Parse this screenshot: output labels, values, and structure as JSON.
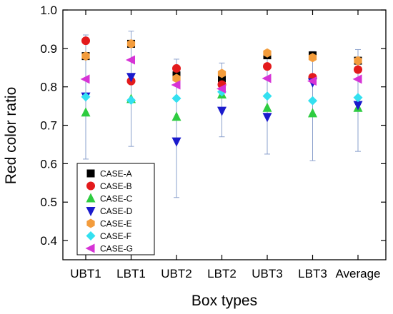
{
  "chart_data": {
    "type": "scatter",
    "title": "",
    "xlabel": "Box types",
    "ylabel": "Red color ratio",
    "categories": [
      "UBT1",
      "LBT1",
      "UBT2",
      "LBT2",
      "UBT3",
      "LBT3",
      "Average"
    ],
    "ylim": [
      0.35,
      1.0
    ],
    "yticks": [
      "0.4",
      "0.5",
      "0.6",
      "0.7",
      "0.8",
      "0.9",
      "1.0"
    ],
    "grid": false,
    "legend_position": "bottom-left",
    "series": [
      {
        "name": "CASE-A",
        "marker": "square",
        "color": "#000000",
        "values": [
          0.88,
          0.912,
          0.83,
          0.822,
          0.882,
          0.882,
          0.868
        ]
      },
      {
        "name": "CASE-B",
        "marker": "circle",
        "color": "#e31a1c",
        "values": [
          0.92,
          0.815,
          0.848,
          0.806,
          0.853,
          0.825,
          0.845
        ]
      },
      {
        "name": "CASE-C",
        "marker": "triangle-up",
        "color": "#2ecc40",
        "values": [
          0.733,
          0.768,
          0.722,
          0.78,
          0.745,
          0.731,
          0.745
        ]
      },
      {
        "name": "CASE-D",
        "marker": "triangle-down",
        "color": "#1a1acc",
        "values": [
          0.775,
          0.826,
          0.658,
          0.738,
          0.722,
          0.812,
          0.753
        ]
      },
      {
        "name": "CASE-E",
        "marker": "hexagon",
        "color": "#f39c3c",
        "values": [
          0.88,
          0.912,
          0.822,
          0.835,
          0.888,
          0.876,
          0.868
        ]
      },
      {
        "name": "CASE-F",
        "marker": "diamond",
        "color": "#33e0f0",
        "values": [
          0.774,
          0.765,
          0.77,
          0.787,
          0.776,
          0.764,
          0.772
        ]
      },
      {
        "name": "CASE-G",
        "marker": "triangle-left",
        "color": "#d633d6",
        "values": [
          0.82,
          0.87,
          0.805,
          0.795,
          0.822,
          0.815,
          0.82
        ]
      }
    ],
    "error_bars": [
      {
        "category": "UBT1",
        "upper": 0.935,
        "lower": 0.612,
        "color": "#8aa0cc"
      },
      {
        "category": "LBT1",
        "upper": 0.945,
        "lower": 0.645,
        "color": "#8aa0cc"
      },
      {
        "category": "UBT2",
        "upper": 0.872,
        "lower": 0.512,
        "color": "#8aa0cc"
      },
      {
        "category": "LBT2",
        "upper": 0.862,
        "lower": 0.67,
        "color": "#8aa0cc"
      },
      {
        "category": "UBT3",
        "upper": 0.892,
        "lower": 0.625,
        "color": "#8aa0cc"
      },
      {
        "category": "LBT3",
        "upper": 0.892,
        "lower": 0.608,
        "color": "#8aa0cc"
      },
      {
        "category": "Average",
        "upper": 0.897,
        "lower": 0.632,
        "color": "#8aa0cc"
      }
    ]
  }
}
